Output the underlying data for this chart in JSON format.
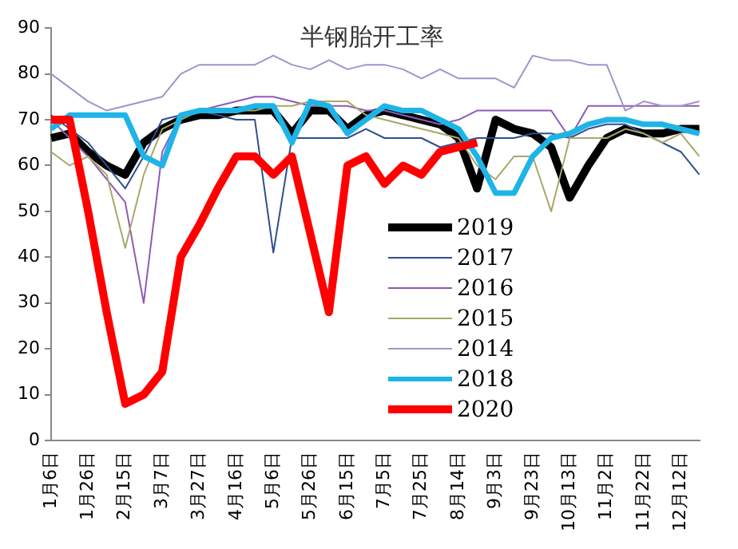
{
  "chart_data": {
    "type": "line",
    "title": "半钢胎开工率",
    "categories": [
      "1月6日",
      null,
      "1月26日",
      null,
      "2月15日",
      null,
      "3月7日",
      null,
      "3月27日",
      null,
      "4月16日",
      null,
      "5月6日",
      null,
      "5月26日",
      null,
      "6月15日",
      null,
      "7月5日",
      null,
      "7月25日",
      null,
      "8月14日",
      null,
      "9月3日",
      null,
      "9月23日",
      null,
      "10月13日",
      null,
      "11月2日",
      null,
      "11月22日",
      null,
      "12月12日",
      null
    ],
    "series": [
      {
        "name": "2019",
        "color": "#000000",
        "values": [
          66,
          67,
          63,
          60,
          58,
          65,
          68,
          70,
          71,
          71,
          72,
          72,
          72,
          67,
          72,
          72,
          68,
          71,
          72,
          71,
          70,
          69,
          66,
          55,
          70,
          68,
          67,
          64,
          53,
          60,
          66,
          68,
          67,
          67,
          68,
          68
        ]
      },
      {
        "name": "2017",
        "color": "#2f4f8f",
        "values": [
          71,
          68,
          65,
          60,
          55,
          62,
          70,
          71,
          72,
          71,
          70,
          70,
          41,
          66,
          66,
          66,
          66,
          68,
          66,
          66,
          66,
          64,
          65,
          66,
          66,
          66,
          67,
          67,
          66,
          68,
          69,
          69,
          67,
          65,
          63,
          58
        ]
      },
      {
        "name": "2016",
        "color": "#8e5ab8",
        "values": [
          70,
          66,
          62,
          57,
          52,
          30,
          63,
          71,
          72,
          73,
          74,
          75,
          75,
          74,
          73,
          73,
          73,
          72,
          72,
          71,
          70,
          69,
          70,
          72,
          72,
          72,
          72,
          72,
          66,
          73,
          73,
          73,
          73,
          73,
          73,
          73
        ]
      },
      {
        "name": "2015",
        "color": "#a8a86a",
        "values": [
          63,
          60,
          62,
          58,
          42,
          58,
          68,
          70,
          72,
          72,
          72,
          72,
          73,
          73,
          74,
          74,
          74,
          71,
          70,
          69,
          68,
          67,
          66,
          60,
          57,
          62,
          62,
          50,
          66,
          66,
          66,
          68,
          67,
          65,
          67,
          62
        ]
      },
      {
        "name": "2014",
        "color": "#9f94cc",
        "values": [
          80,
          77,
          74,
          72,
          73,
          74,
          75,
          80,
          82,
          82,
          82,
          82,
          84,
          82,
          81,
          83,
          81,
          82,
          82,
          81,
          79,
          81,
          79,
          79,
          79,
          77,
          84,
          83,
          83,
          82,
          82,
          72,
          74,
          73,
          73,
          74
        ]
      },
      {
        "name": "2018",
        "color": "#1fb4e8",
        "values": [
          68,
          71,
          71,
          71,
          71,
          62,
          60,
          71,
          72,
          72,
          72,
          73,
          73,
          65,
          74,
          73,
          67,
          70,
          73,
          72,
          72,
          70,
          68,
          62,
          54,
          54,
          62,
          66,
          67,
          69,
          70,
          70,
          69,
          69,
          68,
          67
        ]
      },
      {
        "name": "2020",
        "color": "#ff0000",
        "values": [
          70,
          70,
          50,
          28,
          8,
          10,
          15,
          40,
          47,
          55,
          62,
          62,
          58,
          62,
          45,
          28,
          60,
          62,
          56,
          60,
          58,
          63,
          64,
          65,
          null,
          null,
          null,
          null,
          null,
          null,
          null,
          null,
          null,
          null,
          null,
          null
        ]
      }
    ],
    "ylim": [
      0,
      90
    ],
    "yticks": [
      0,
      10,
      20,
      30,
      40,
      50,
      60,
      70,
      80,
      90
    ],
    "grid": false,
    "legend": "center",
    "marker": "none",
    "line_style": "solid"
  }
}
